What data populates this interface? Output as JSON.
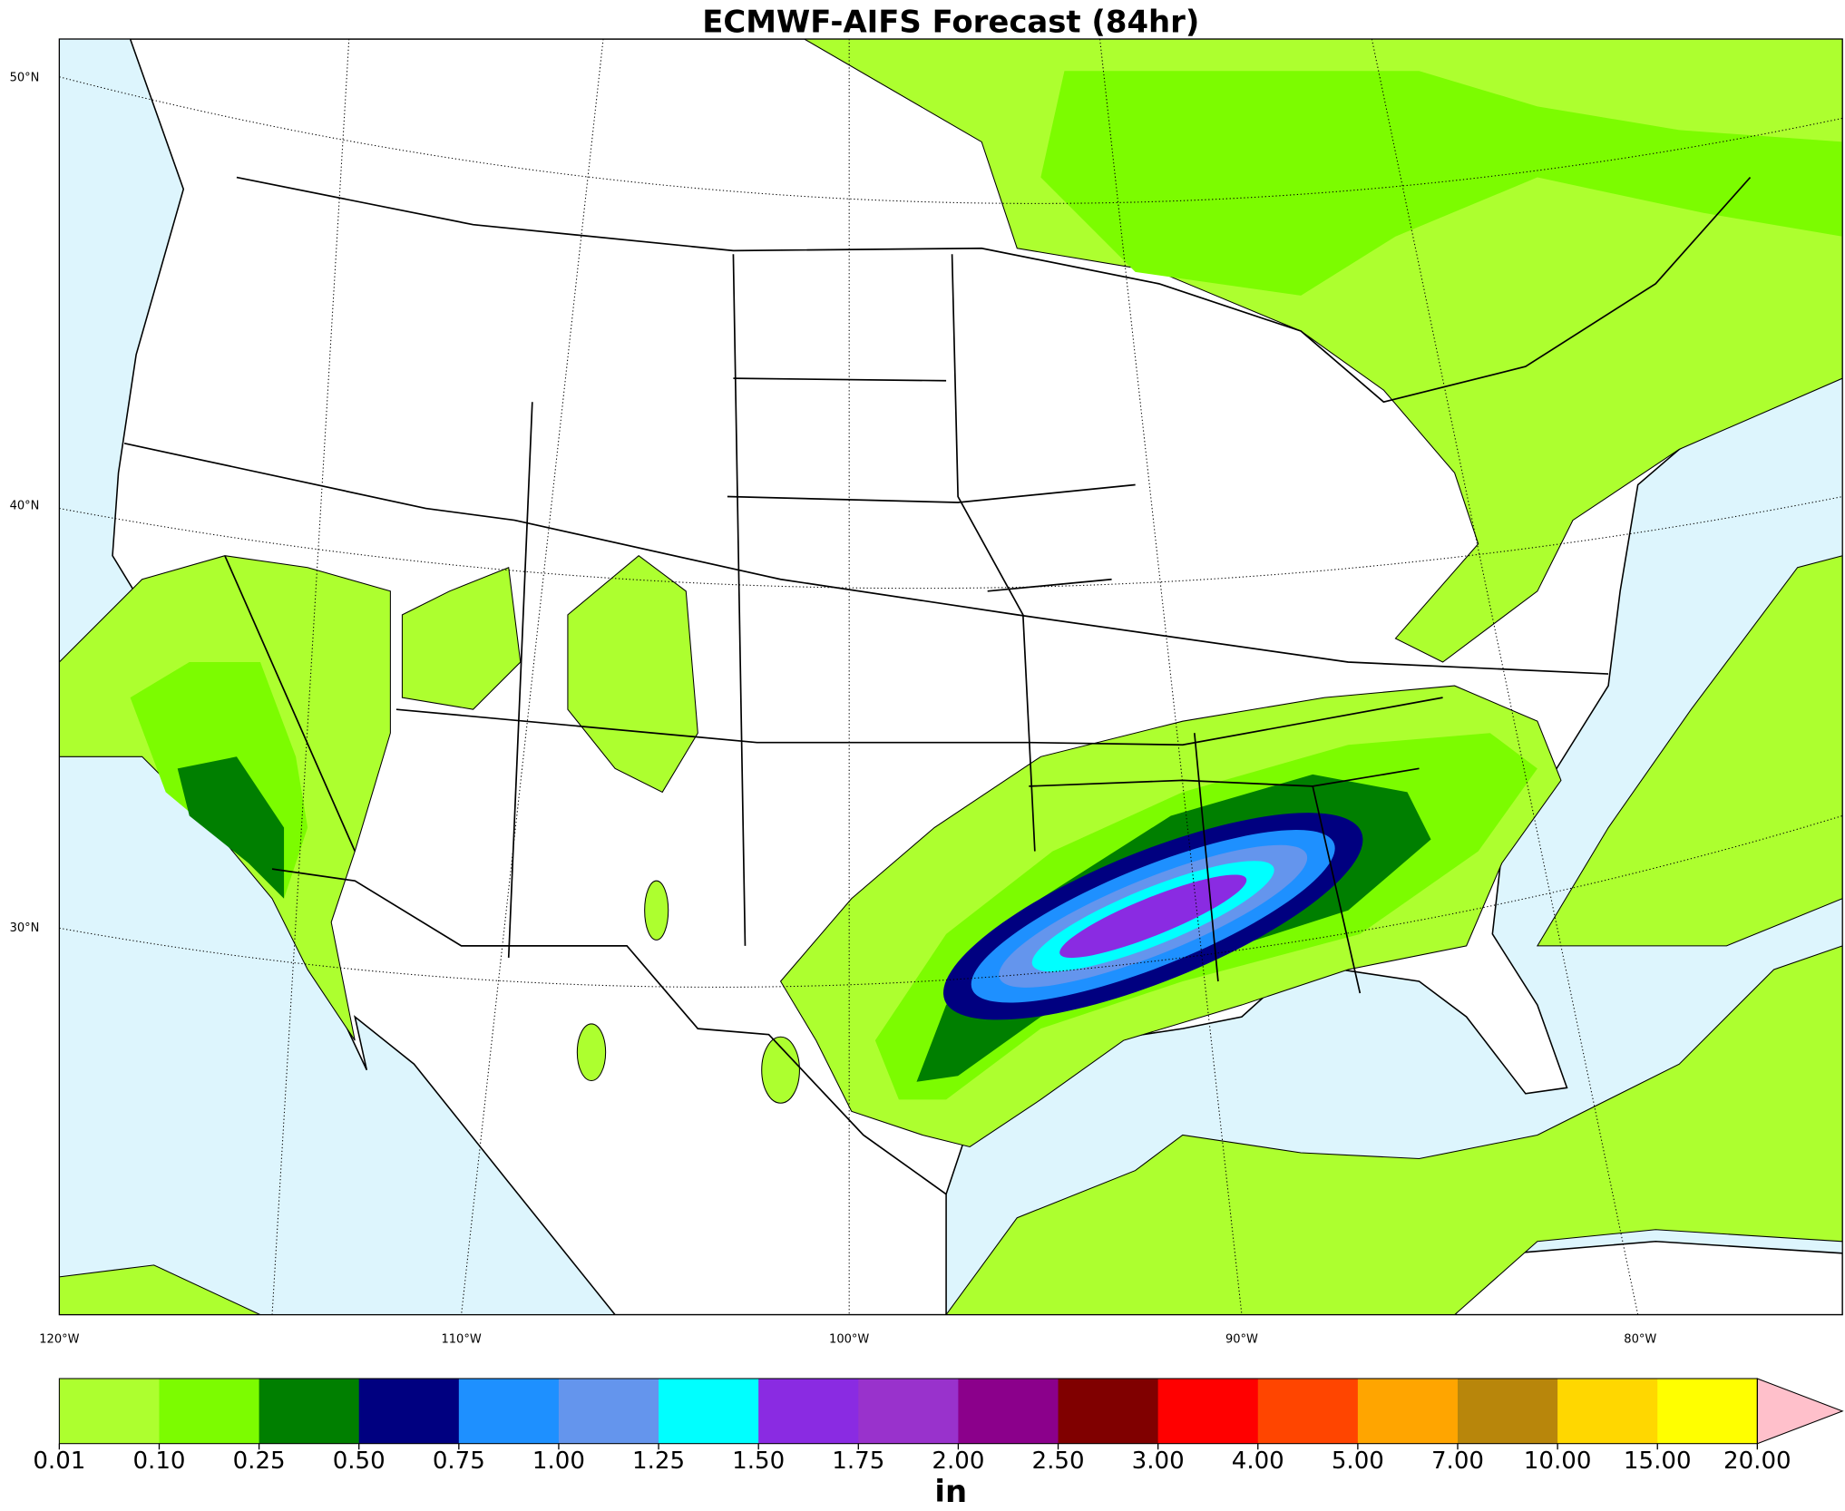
{
  "title": "ECMWF-AIFS Forecast (84hr)",
  "lat_labels": [
    "50°N",
    "40°N",
    "30°N"
  ],
  "lon_labels": [
    "120°W",
    "110°W",
    "100°W",
    "90°W",
    "80°W"
  ],
  "colorbar": {
    "ticks": [
      0.01,
      {
        "value": 0.1,
        "label": "0.10"
      },
      0.25,
      {
        "value": 0.5,
        "label": "0.50"
      },
      0.75,
      {
        "value": 1,
        "label": "1.00"
      },
      1.25,
      {
        "value": 1.5,
        "label": "1.50"
      },
      1.75,
      {
        "value": 2,
        "label": "2.00"
      },
      {
        "value": 2.5,
        "label": "2.50"
      },
      {
        "value": 3,
        "label": "3.00"
      },
      {
        "value": 4,
        "label": "4.00"
      },
      {
        "value": 5,
        "label": "5.00"
      },
      {
        "value": 7,
        "label": "7.00"
      },
      {
        "value": 10,
        "label": "10.00"
      },
      {
        "value": 15,
        "label": "15.00"
      },
      {
        "value": 20,
        "label": "20.00"
      }
    ],
    "colors": [
      "#adff2f",
      "#7cfc00",
      "#007f00",
      "#000080",
      "#1e90ff",
      "#6495ed",
      "#00ffff",
      "#8a2be2",
      "#9932cc",
      "#8b008b",
      "#800000",
      "#ff0000",
      "#ff4500",
      "#ffa500",
      "#b8860b",
      "#ffd700",
      "#ffff00"
    ],
    "over_color": "#ffc0cb",
    "unit": "in"
  }
}
